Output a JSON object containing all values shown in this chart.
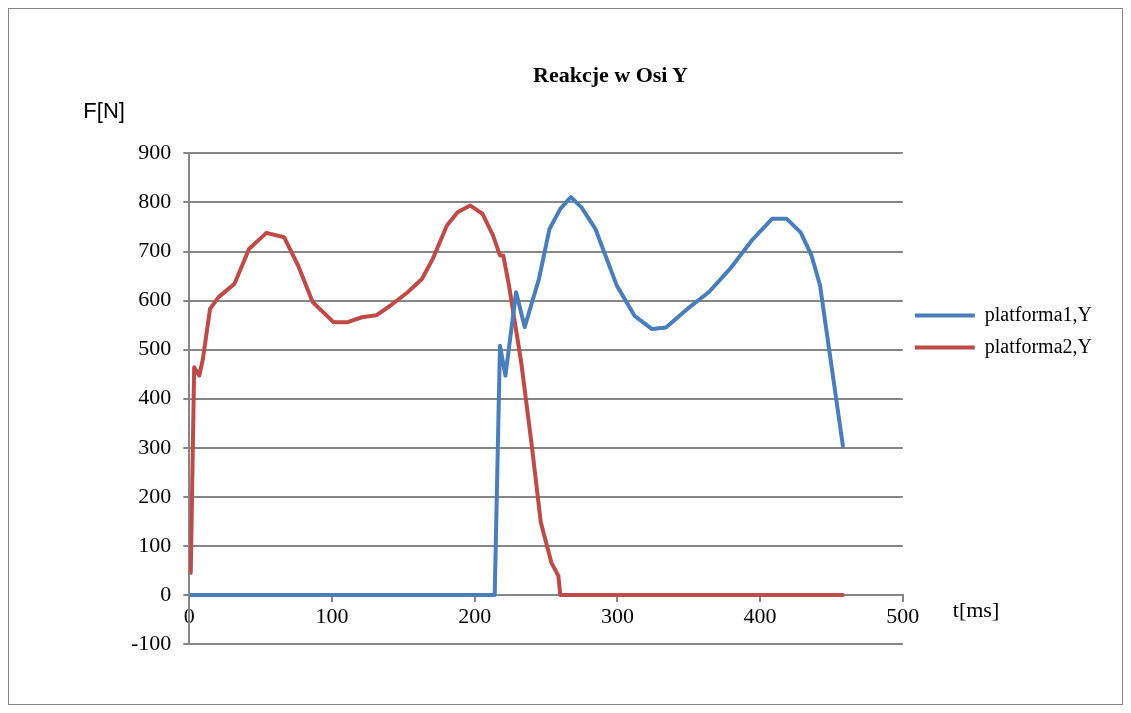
{
  "chart_data": {
    "type": "line",
    "title": "Reakcje w Osi Y",
    "xlabel": "t[ms]",
    "ylabel": "F[N]",
    "xlim": [
      0,
      500
    ],
    "xticks": [
      0,
      100,
      200,
      300,
      400,
      500
    ],
    "ylim": [
      -100,
      900
    ],
    "yticks": [
      -100,
      0,
      100,
      200,
      300,
      400,
      500,
      600,
      700,
      800,
      900
    ],
    "grid": "y",
    "legend": "right",
    "marker": "none",
    "line_style": "solid",
    "series": [
      {
        "name": "platforma1,Y",
        "color": "#4a7ebb",
        "x": [
          0,
          214,
          217.7,
          221.5,
          229,
          235,
          245,
          252.4,
          260,
          267.3,
          274.8,
          284.6,
          299.5,
          312,
          324.3,
          334,
          349,
          364,
          379,
          394,
          408.5,
          418.5,
          428.4,
          436,
          442,
          448,
          458
        ],
        "values": [
          0,
          0,
          508,
          447,
          617,
          546,
          644,
          746,
          787,
          811,
          790,
          746,
          631,
          569,
          542,
          545,
          583,
          617,
          665,
          722,
          767,
          767,
          739,
          692,
          631,
          508,
          304
        ]
      },
      {
        "name": "platforma2,Y",
        "color": "#be4b48",
        "x": [
          1,
          3.4,
          7,
          9.5,
          14.5,
          20.5,
          31.6,
          41.8,
          54,
          66.5,
          76.3,
          86.4,
          101,
          111,
          121,
          131,
          141,
          153,
          163,
          170.6,
          180.5,
          188,
          196.7,
          205.4,
          212.8,
          217.7,
          220,
          224,
          232.6,
          240,
          246.3,
          253.7,
          258.6,
          260,
          458
        ],
        "values": [
          45,
          464,
          447,
          481,
          583,
          607,
          634,
          705,
          738,
          729,
          671,
          597,
          556,
          556,
          566,
          570,
          590,
          617,
          644,
          685,
          753,
          780,
          794,
          777,
          733,
          692,
          692,
          631,
          474,
          304,
          148,
          66,
          39,
          0,
          0
        ]
      }
    ]
  }
}
